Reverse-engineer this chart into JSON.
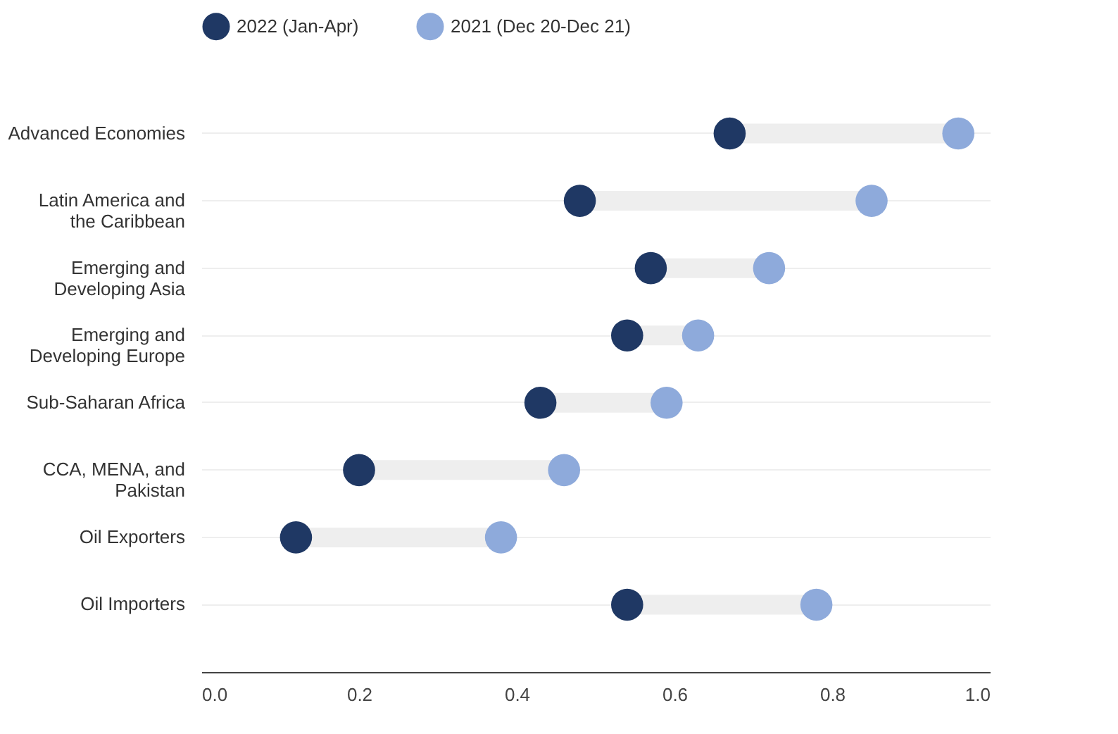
{
  "chart_data": {
    "type": "scatter",
    "categories": [
      "Advanced Economies",
      "Latin America and the Caribbean",
      "Emerging and Developing Asia",
      "Emerging and Developing Europe",
      "Sub-Saharan Africa",
      "CCA, MENA, and Pakistan",
      "Oil Exporters",
      "Oil Importers"
    ],
    "series": [
      {
        "name": "2022 (Jan-Apr)",
        "color": "#1f3864",
        "values": [
          0.67,
          0.48,
          0.57,
          0.54,
          0.43,
          0.2,
          0.12,
          0.54
        ]
      },
      {
        "name": "2021 (Dec 20-Dec 21)",
        "color": "#8eaadb",
        "values": [
          0.96,
          0.85,
          0.72,
          0.63,
          0.59,
          0.46,
          0.38,
          0.78
        ]
      }
    ],
    "orientation": "horizontal",
    "xlim": [
      0,
      1
    ],
    "xticks": [
      {
        "value": 0,
        "label": "0.0"
      },
      0.2,
      0.4,
      0.6,
      0.8,
      {
        "value": 1,
        "label": "1.0"
      }
    ],
    "grid": "y",
    "legend": "top",
    "marker": "circle"
  }
}
